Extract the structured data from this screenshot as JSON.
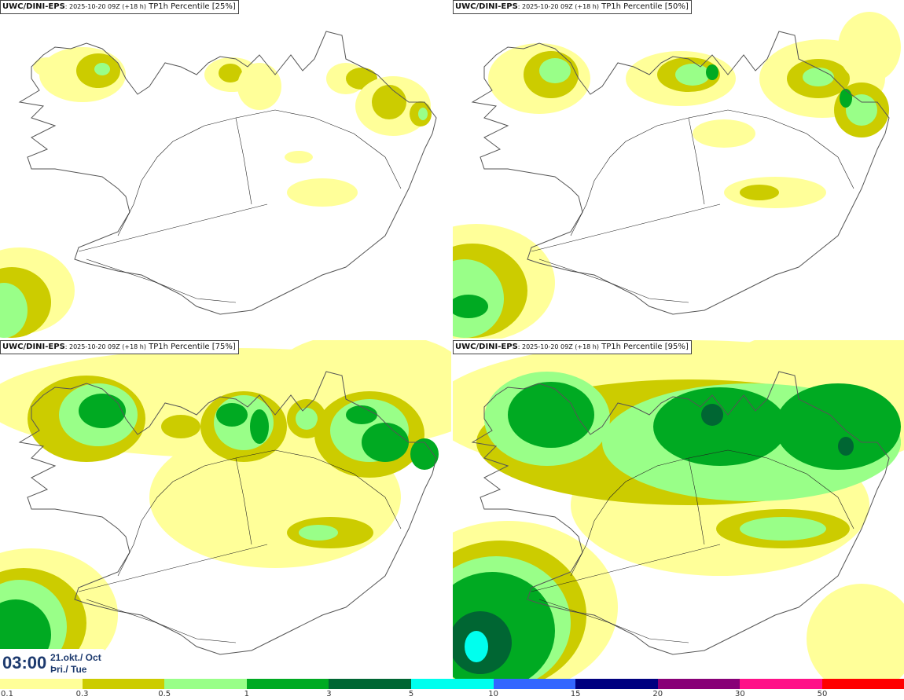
{
  "panels": [
    {
      "source": "UWC/DINI-EPS",
      "meta": ": 2025-10-20 09Z (+18 h)",
      "variable": " TP1h Percentile [25%]"
    },
    {
      "source": "UWC/DINI-EPS",
      "meta": ": 2025-10-20 09Z (+18 h)",
      "variable": " TP1h Percentile [50%]"
    },
    {
      "source": "UWC/DINI-EPS",
      "meta": ": 2025-10-20 09Z (+18 h)",
      "variable": " TP1h Percentile [75%]"
    },
    {
      "source": "UWC/DINI-EPS",
      "meta": ": 2025-10-20 09Z (+18 h)",
      "variable": " TP1h Percentile [95%]"
    }
  ],
  "clock": {
    "time": "03:00",
    "date_line1": "21.okt./ Oct",
    "date_line2": "Þri./ Tue"
  },
  "legend": {
    "labels": [
      "0.1",
      "0.3",
      "0.5",
      "1",
      "3",
      "5",
      "10",
      "15",
      "20",
      "30",
      "50"
    ],
    "colors": [
      "#ffff99",
      "#cccc00",
      "#99ff88",
      "#00aa22",
      "#006633",
      "#00ffee",
      "#3366ff",
      "#000080",
      "#880077",
      "#ff1188",
      "#ff0000"
    ]
  },
  "colors": {
    "coastline": "#555555",
    "roads": "#222222",
    "light_yellow": "#ffff99",
    "olive": "#cccc00",
    "light_green": "#99ff88",
    "green": "#00aa22",
    "dark_green": "#006633",
    "cyan": "#00ffee"
  }
}
